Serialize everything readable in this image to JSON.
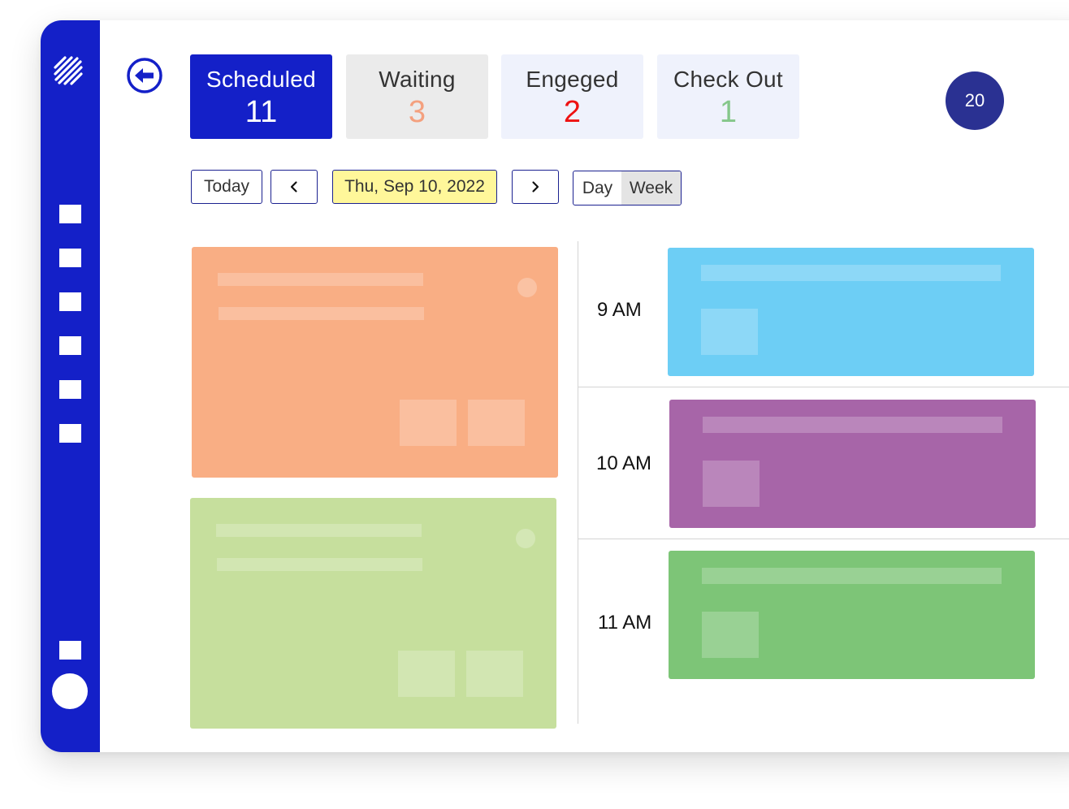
{
  "sidebar": {
    "logo_icon": "stripes-logo-icon",
    "items": [
      "nav-item-1",
      "nav-item-2",
      "nav-item-3",
      "nav-item-4",
      "nav-item-5",
      "nav-item-6",
      "nav-item-settings"
    ],
    "accent": "#1420c8"
  },
  "header": {
    "back_icon": "arrow-left-circle-icon",
    "status_cards": [
      {
        "label": "Scheduled",
        "count": "11",
        "bg": "#1420c8",
        "label_color": "#ffffff",
        "count_color": "#ffffff"
      },
      {
        "label": "Waiting",
        "count": "3",
        "bg": "#ebebeb",
        "label_color": "#333333",
        "count_color": "#f4a07e"
      },
      {
        "label": "Engeged",
        "count": "2",
        "bg": "#eff2fc",
        "label_color": "#333333",
        "count_color": "#ee1111"
      },
      {
        "label": "Check Out",
        "count": "1",
        "bg": "#eff2fc",
        "label_color": "#333333",
        "count_color": "#85c78a"
      }
    ],
    "badge": "20"
  },
  "toolbar": {
    "today_label": "Today",
    "prev_icon": "chevron-left-icon",
    "date_label": "Thu, Sep 10, 2022",
    "next_icon": "chevron-right-icon",
    "view_options": [
      "Day",
      "Week"
    ],
    "selected_view": "Week"
  },
  "left_cards": [
    {
      "color": "#f9ae84"
    },
    {
      "color": "#c6df9d"
    }
  ],
  "schedule": {
    "slots": [
      {
        "time": "9 AM",
        "color": "#6dcef5"
      },
      {
        "time": "10 AM",
        "color": "#a765a8"
      },
      {
        "time": "11 AM",
        "color": "#7dc577"
      }
    ]
  }
}
